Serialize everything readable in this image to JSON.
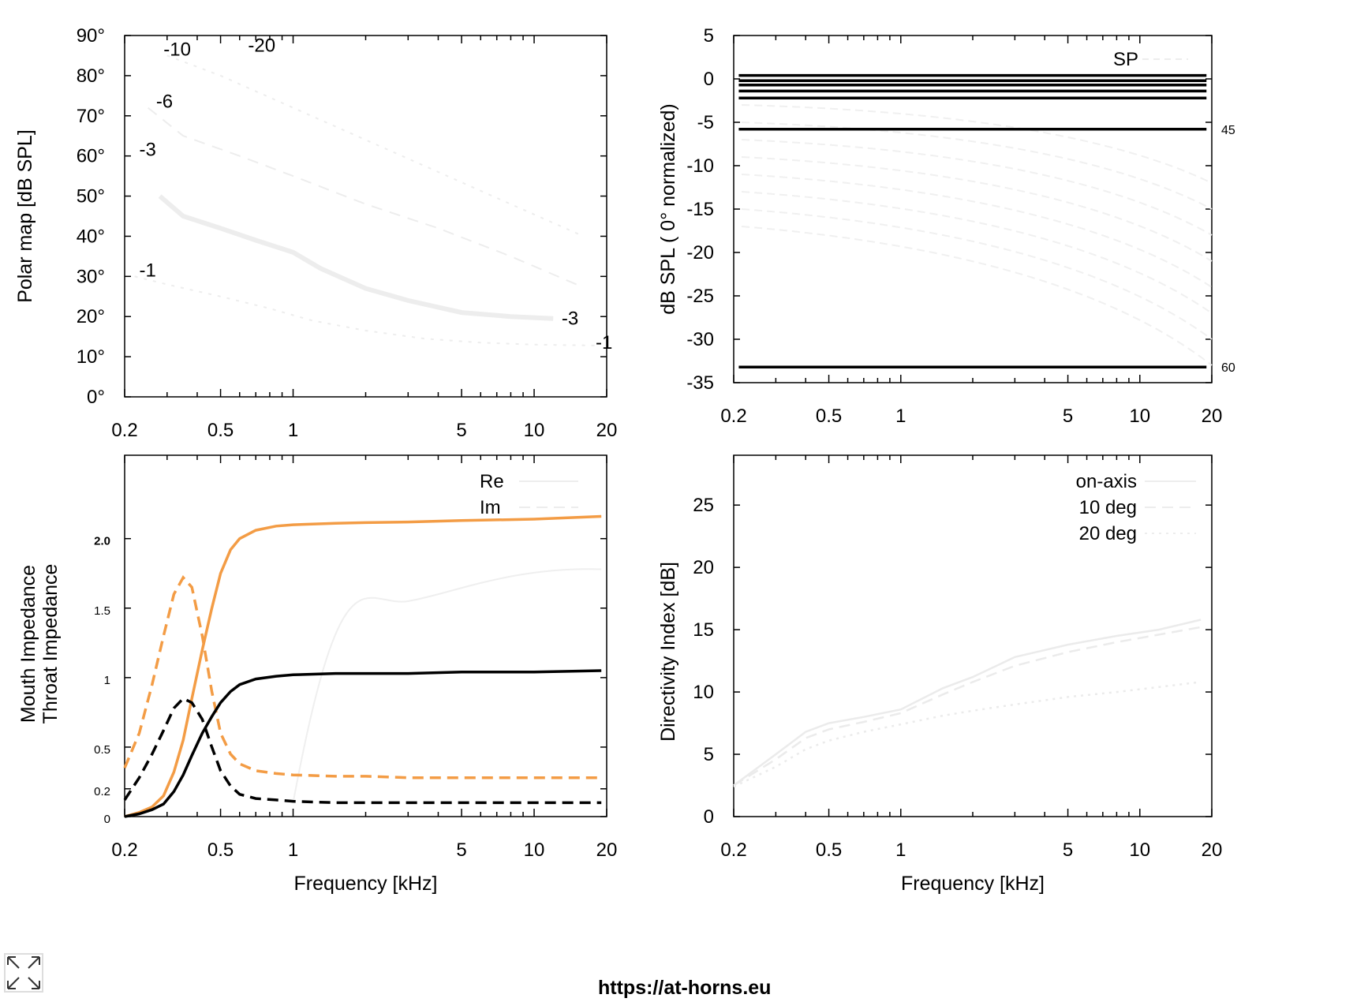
{
  "footer": {
    "url": "https://at-horns.eu"
  },
  "icons": {
    "expand": "expand-icon"
  },
  "colors": {
    "mouth": "#f39c45",
    "throat": "#000000",
    "faint": "#e8e8e8"
  },
  "chart_data": [
    {
      "id": "polar-map",
      "type": "heatmap",
      "title": "",
      "xlabel": "",
      "ylabel": "Polar map [dB SPL]",
      "xscale": "log",
      "xlim": [
        0.2,
        20
      ],
      "ylim": [
        0,
        90
      ],
      "xticks": [
        0.2,
        0.5,
        1,
        5,
        10,
        20
      ],
      "xtick_labels": [
        "0.2",
        "0.5",
        "1",
        "5",
        "10",
        "20"
      ],
      "yticks": [
        0,
        10,
        20,
        30,
        40,
        50,
        60,
        70,
        80,
        90
      ],
      "ytick_labels": [
        "0°",
        "10°",
        "20°",
        "30°",
        "40°",
        "50°",
        "60°",
        "70°",
        "80°",
        "90°"
      ],
      "contour_labels": [
        "-10",
        "-20",
        "-6",
        "-3",
        "-1",
        "-3",
        "-1"
      ],
      "contours": [
        {
          "x": [
            0.28,
            0.35,
            0.5,
            0.7,
            1.0,
            1.3,
            2.0,
            3.0,
            5.0,
            8.0,
            12.0
          ],
          "y": [
            50,
            45,
            42,
            39,
            36,
            32,
            27,
            24,
            21,
            20,
            19.5
          ]
        },
        {
          "x": [
            0.22,
            0.3,
            0.5,
            0.8,
            1.2,
            2.0,
            3.5,
            6.0,
            10.0,
            18.0
          ],
          "y": [
            30,
            28,
            25,
            22,
            19,
            16.5,
            14.5,
            13.5,
            13,
            12.8
          ]
        },
        {
          "x": [
            0.25,
            0.35,
            0.6,
            1.0,
            2.0,
            4.0,
            8.0,
            15.0
          ],
          "y": [
            72,
            65,
            60,
            55,
            48,
            42,
            35,
            28
          ]
        },
        {
          "x": [
            0.3,
            0.5,
            1.0,
            2.0,
            4.0,
            8.0,
            16.0
          ],
          "y": [
            85,
            80,
            72,
            64,
            56,
            48,
            40
          ]
        }
      ]
    },
    {
      "id": "normalized-spl",
      "type": "line",
      "title": "",
      "xlabel": "",
      "ylabel": "dB SPL ( 0° normalized)",
      "xscale": "log",
      "xlim": [
        0.2,
        20
      ],
      "ylim": [
        -35,
        5
      ],
      "xticks": [
        0.2,
        0.5,
        1,
        5,
        10,
        20
      ],
      "xtick_labels": [
        "0.2",
        "0.5",
        "1",
        "5",
        "10",
        "20"
      ],
      "yticks": [
        5,
        0,
        -5,
        -10,
        -15,
        -20,
        -25,
        -30,
        -35
      ],
      "ytick_labels": [
        "5",
        "0",
        "-5",
        "-10",
        "-15",
        "-20",
        "-25",
        "-30",
        "-35"
      ],
      "legend": [
        {
          "label": "SP",
          "style": "dashed"
        }
      ],
      "right_labels": [
        {
          "text": "45",
          "y": -5.8
        },
        {
          "text": "60",
          "y": -33.2
        }
      ],
      "series": [
        {
          "y": 0.4
        },
        {
          "y": -0.2
        },
        {
          "y": -0.7
        },
        {
          "y": -1.4
        },
        {
          "y": -2.2
        },
        {
          "y": -5.8
        },
        {
          "y": -33.2
        }
      ]
    },
    {
      "id": "impedance",
      "type": "line",
      "title": "",
      "xlabel": "Frequency [kHz]",
      "ylabel_mouth_word1": "Mouth",
      "ylabel_mouth_word2": "Impedance",
      "ylabel_throat": "Throat Impedance",
      "xscale": "log",
      "xlim": [
        0.2,
        20
      ],
      "ylim": [
        0,
        2.6
      ],
      "xticks": [
        0.2,
        0.5,
        1,
        5,
        10,
        20
      ],
      "xtick_labels": [
        "0.2",
        "0.5",
        "1",
        "5",
        "10",
        "20"
      ],
      "yticks": [
        0,
        0.2,
        0.5,
        1,
        1.5,
        2.0
      ],
      "ytick_labels": [
        "0",
        "0.2",
        "0.5",
        "1",
        "1.5",
        "2.0"
      ],
      "legend": [
        {
          "label": "Re",
          "style": "solid"
        },
        {
          "label": "Im",
          "style": "dashed"
        }
      ],
      "series": [
        {
          "name": "Mouth Re",
          "style": "solid",
          "color": "mouth",
          "x": [
            0.2,
            0.23,
            0.26,
            0.29,
            0.32,
            0.35,
            0.38,
            0.42,
            0.46,
            0.5,
            0.55,
            0.6,
            0.7,
            0.85,
            1.0,
            1.5,
            2,
            3,
            5,
            10,
            19
          ],
          "values": [
            0,
            0.03,
            0.07,
            0.15,
            0.32,
            0.55,
            0.85,
            1.2,
            1.5,
            1.75,
            1.92,
            2.0,
            2.06,
            2.09,
            2.1,
            2.11,
            2.115,
            2.12,
            2.13,
            2.14,
            2.16
          ]
        },
        {
          "name": "Mouth Im",
          "style": "dashed",
          "color": "mouth",
          "x": [
            0.2,
            0.23,
            0.26,
            0.29,
            0.32,
            0.35,
            0.38,
            0.42,
            0.46,
            0.5,
            0.55,
            0.6,
            0.7,
            0.85,
            1.0,
            1.5,
            2,
            3,
            5,
            10,
            19
          ],
          "values": [
            0.35,
            0.6,
            0.95,
            1.3,
            1.6,
            1.72,
            1.65,
            1.3,
            0.9,
            0.6,
            0.45,
            0.38,
            0.33,
            0.31,
            0.3,
            0.29,
            0.29,
            0.28,
            0.28,
            0.28,
            0.28
          ]
        },
        {
          "name": "Throat Re",
          "style": "solid",
          "color": "throat",
          "x": [
            0.2,
            0.23,
            0.26,
            0.29,
            0.32,
            0.35,
            0.38,
            0.42,
            0.46,
            0.5,
            0.55,
            0.6,
            0.7,
            0.85,
            1.0,
            1.5,
            2,
            3,
            5,
            10,
            19
          ],
          "values": [
            0,
            0.02,
            0.05,
            0.09,
            0.18,
            0.3,
            0.44,
            0.6,
            0.72,
            0.82,
            0.9,
            0.95,
            0.99,
            1.01,
            1.02,
            1.03,
            1.03,
            1.03,
            1.04,
            1.04,
            1.05
          ]
        },
        {
          "name": "Throat Im",
          "style": "dashed",
          "color": "throat",
          "x": [
            0.2,
            0.23,
            0.26,
            0.29,
            0.32,
            0.35,
            0.38,
            0.42,
            0.46,
            0.5,
            0.55,
            0.6,
            0.7,
            0.85,
            1.0,
            1.5,
            2,
            3,
            5,
            10,
            19
          ],
          "values": [
            0.12,
            0.28,
            0.45,
            0.62,
            0.78,
            0.85,
            0.82,
            0.7,
            0.5,
            0.33,
            0.22,
            0.16,
            0.13,
            0.12,
            0.11,
            0.1,
            0.1,
            0.1,
            0.1,
            0.1,
            0.1
          ]
        }
      ]
    },
    {
      "id": "directivity",
      "type": "line",
      "title": "",
      "xlabel": "Frequency [kHz]",
      "ylabel": "Directivity Index [dB]",
      "xscale": "log",
      "xlim": [
        0.2,
        20
      ],
      "ylim": [
        0,
        29
      ],
      "xticks": [
        0.2,
        0.5,
        1,
        5,
        10,
        20
      ],
      "xtick_labels": [
        "0.2",
        "0.5",
        "1",
        "5",
        "10",
        "20"
      ],
      "yticks": [
        0,
        5,
        10,
        15,
        20,
        25
      ],
      "ytick_labels": [
        "0",
        "5",
        "10",
        "15",
        "20",
        "25"
      ],
      "legend": [
        {
          "label": "on-axis",
          "style": "solid"
        },
        {
          "label": "10 deg",
          "style": "dashed"
        },
        {
          "label": "20 deg",
          "style": "dotted"
        }
      ],
      "series": [
        {
          "name": "on-axis",
          "style": "solid",
          "x": [
            0.2,
            0.3,
            0.4,
            0.5,
            0.7,
            1.0,
            1.5,
            2.0,
            3.0,
            5.0,
            8.0,
            12.0,
            18.0
          ],
          "values": [
            2.5,
            5.0,
            6.8,
            7.5,
            8.0,
            8.6,
            10.3,
            11.2,
            12.8,
            13.8,
            14.5,
            15.0,
            15.8
          ]
        },
        {
          "name": "10 deg",
          "style": "dashed",
          "x": [
            0.2,
            0.3,
            0.4,
            0.5,
            0.7,
            1.0,
            1.5,
            2.0,
            3.0,
            5.0,
            8.0,
            12.0,
            18.0
          ],
          "values": [
            2.5,
            4.6,
            6.3,
            7.0,
            7.6,
            8.3,
            9.8,
            10.8,
            12.1,
            13.2,
            14.0,
            14.6,
            15.2
          ]
        },
        {
          "name": "20 deg",
          "style": "dotted",
          "x": [
            0.2,
            0.3,
            0.4,
            0.5,
            0.7,
            1.0,
            1.5,
            2.0,
            3.0,
            5.0,
            8.0,
            12.0,
            18.0
          ],
          "values": [
            2.4,
            4.0,
            5.4,
            6.1,
            6.8,
            7.4,
            8.1,
            8.5,
            9.0,
            9.6,
            10.0,
            10.4,
            10.8
          ]
        }
      ]
    }
  ]
}
